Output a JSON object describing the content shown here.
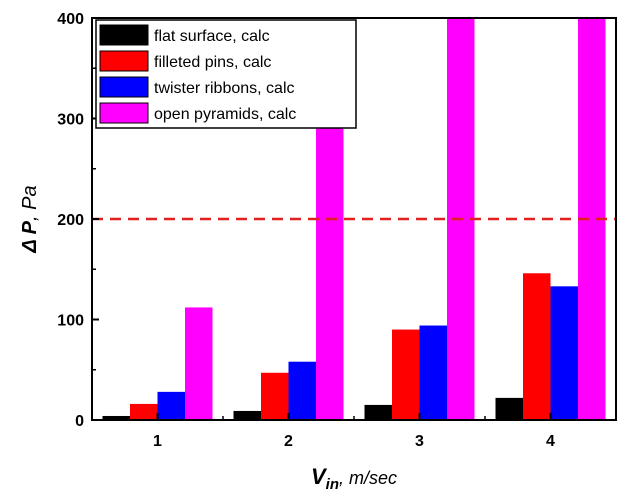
{
  "chart_data": {
    "type": "bar",
    "title": "",
    "xlabel": {
      "main": "V",
      "sub": "in",
      "unit": ", m/sec"
    },
    "ylabel": {
      "main": "Δ P",
      "unit": ", Pa"
    },
    "categories": [
      "1",
      "2",
      "3",
      "4"
    ],
    "ylim": [
      0,
      400
    ],
    "yticks": [
      "0",
      "100",
      "200",
      "300",
      "400"
    ],
    "series": [
      {
        "name": "flat surface, calc",
        "color": "#000000",
        "values": [
          4,
          9,
          15,
          22
        ]
      },
      {
        "name": "filleted pins, calc",
        "color": "#ff0000",
        "values": [
          16,
          47,
          90,
          146
        ]
      },
      {
        "name": "twister ribbons, calc",
        "color": "#0000ff",
        "values": [
          28,
          58,
          94,
          133
        ]
      },
      {
        "name": "open pyramids, calc",
        "color": "#ff00ff",
        "values": [
          112,
          296,
          400,
          400
        ]
      }
    ],
    "reference_line": {
      "value": 200,
      "style": "dashed",
      "color": "#e02020"
    },
    "legend_position": "top-left",
    "grid": false
  }
}
